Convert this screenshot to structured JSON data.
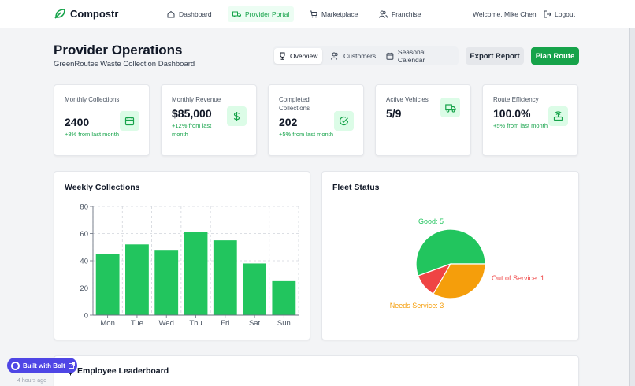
{
  "nav": {
    "brand": "Compostr",
    "items": [
      {
        "label": "Dashboard",
        "icon": "home-icon",
        "active": false
      },
      {
        "label": "Provider Portal",
        "icon": "truck-icon",
        "active": true
      },
      {
        "label": "Marketplace",
        "icon": "cart-icon",
        "active": false
      },
      {
        "label": "Franchise",
        "icon": "users-icon",
        "active": false
      }
    ],
    "welcome": "Welcome, Mike Chen",
    "logout": "Logout"
  },
  "header": {
    "title": "Provider Operations",
    "subtitle": "GreenRoutes Waste Collection Dashboard",
    "tabs": [
      {
        "label": "Overview",
        "icon": "trophy-icon",
        "active": true
      },
      {
        "label": "Customers",
        "icon": "users-icon",
        "active": false
      },
      {
        "label": "Seasonal Calendar",
        "icon": "calendar-icon",
        "active": false
      }
    ],
    "export_label": "Export Report",
    "plan_label": "Plan Route"
  },
  "stats": [
    {
      "label": "Monthly Collections",
      "value": "2400",
      "trend": "+8% from last month",
      "icon": "calendar-icon"
    },
    {
      "label": "Monthly Revenue",
      "value": "$85,000",
      "trend": "+12% from last month",
      "icon": "dollar-icon"
    },
    {
      "label": "Completed Collections",
      "value": "202",
      "trend": "+5% from last month",
      "icon": "check-circle-icon"
    },
    {
      "label": "Active Vehicles",
      "value": "5/9",
      "trend": "",
      "icon": "truck-icon"
    },
    {
      "label": "Route Efficiency",
      "value": "100.0%",
      "trend": "+5% from last month",
      "icon": "router-icon"
    }
  ],
  "weekly": {
    "title": "Weekly Collections",
    "chart_data": {
      "type": "bar",
      "categories": [
        "Mon",
        "Tue",
        "Wed",
        "Thu",
        "Fri",
        "Sat",
        "Sun"
      ],
      "values": [
        45,
        52,
        48,
        61,
        55,
        38,
        25
      ],
      "ylim": [
        0,
        80
      ],
      "yticks": [
        "0",
        "20",
        "40",
        "60",
        "80"
      ],
      "grid": true,
      "color": "#22c55e"
    }
  },
  "fleet": {
    "title": "Fleet Status",
    "chart_data": {
      "type": "pie",
      "slices": [
        {
          "label": "Good: 5",
          "value": 5,
          "color": "#22c55e"
        },
        {
          "label": "Out of Service: 1",
          "value": 1,
          "color": "#ef4444"
        },
        {
          "label": "Needs Service: 3",
          "value": 3,
          "color": "#f59e0b"
        }
      ]
    }
  },
  "leaderboard": {
    "title": "Employee Leaderboard"
  },
  "badge": {
    "label": "Built with Bolt"
  },
  "footer_hint": "4 hours ago"
}
